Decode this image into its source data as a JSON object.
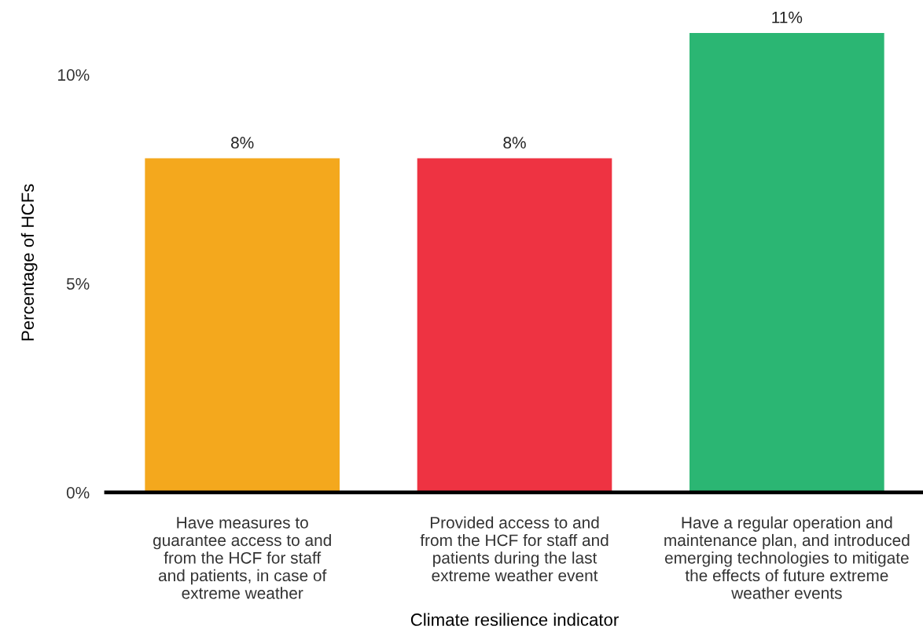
{
  "chart_data": {
    "type": "bar",
    "xlabel": "Climate resilience indicator",
    "ylabel": "Percentage of HCFs",
    "categories": [
      "Have measures to\nguarantee access to and\nfrom the HCF for staff\nand patients, in case of\nextreme weather",
      "Provided access to and\nfrom the HCF for staff and\npatients during the last\nextreme weather event",
      "Have a regular operation and\nmaintenance plan, and introduced\nemerging technologies to mitigate\nthe effects of future extreme\nweather events"
    ],
    "values": [
      8,
      8,
      11
    ],
    "colors": [
      "#f4a81d",
      "#ee3342",
      "#2bb673"
    ],
    "value_labels": [
      "8%",
      "8%",
      "11%"
    ],
    "ylim": [
      0,
      11
    ],
    "yticks": [
      {
        "value": 0,
        "label": "0%"
      },
      {
        "value": 5,
        "label": "5%"
      },
      {
        "value": 10,
        "label": "10%"
      }
    ],
    "grid": false,
    "legend": false
  }
}
